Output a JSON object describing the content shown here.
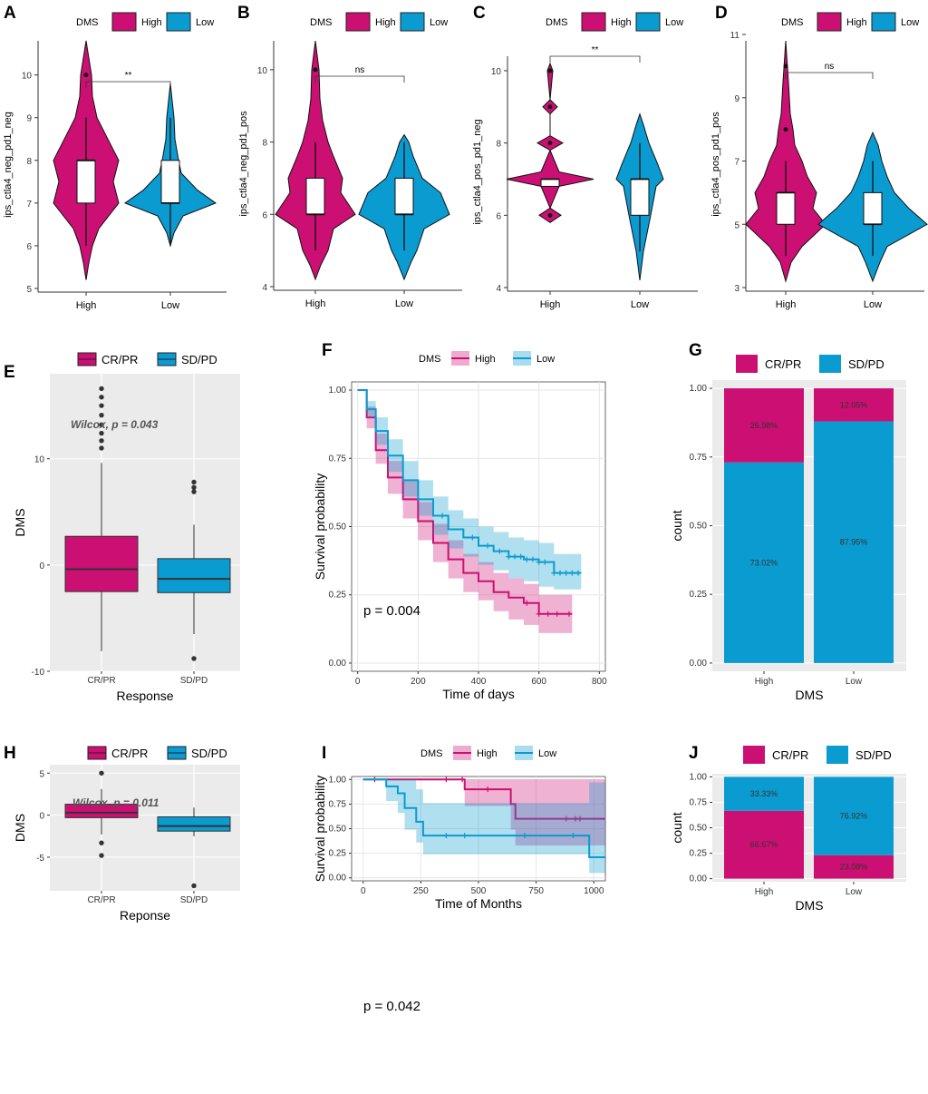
{
  "colors": {
    "high": "#cc0f73",
    "low": "#0a9bd0",
    "panel_bg": "#ebebeb",
    "grid": "#ffffff"
  },
  "chart_data": [
    {
      "panel": "A",
      "type": "violin",
      "legend_title": "DMS",
      "legend_labels": [
        "High",
        "Low"
      ],
      "ylabel": "ips_ctla4_neg_pd1_neg",
      "categories": [
        "High",
        "Low"
      ],
      "ylim": [
        5,
        10.8
      ],
      "yticks": [
        5,
        6,
        7,
        8,
        9,
        10
      ],
      "significance": "**",
      "series": [
        {
          "name": "High",
          "q1": 7,
          "median": 8,
          "q3": 8,
          "whisker_low": 6,
          "whisker_high": 9,
          "outliers": [
            10
          ]
        },
        {
          "name": "Low",
          "q1": 7,
          "median": 7,
          "q3": 8,
          "whisker_low": 6,
          "whisker_high": 9,
          "outliers": []
        }
      ]
    },
    {
      "panel": "B",
      "type": "violin",
      "legend_title": "DMS",
      "legend_labels": [
        "High",
        "Low"
      ],
      "ylabel": "ips_ctla4_neg_pd1_pos",
      "categories": [
        "High",
        "Low"
      ],
      "ylim": [
        4,
        10.8
      ],
      "yticks": [
        4,
        6,
        8,
        10
      ],
      "significance": "ns",
      "series": [
        {
          "name": "High",
          "q1": 6,
          "median": 6,
          "q3": 7,
          "whisker_low": 5,
          "whisker_high": 8,
          "outliers": [
            10
          ]
        },
        {
          "name": "Low",
          "q1": 6,
          "median": 6,
          "q3": 7,
          "whisker_low": 5,
          "whisker_high": 8,
          "outliers": []
        }
      ]
    },
    {
      "panel": "C",
      "type": "violin",
      "legend_title": "DMS",
      "legend_labels": [
        "High",
        "Low"
      ],
      "ylabel": "ips_ctla4_pos_pd1_neg",
      "categories": [
        "High",
        "Low"
      ],
      "ylim": [
        4,
        10.4
      ],
      "yticks": [
        4,
        6,
        8,
        10
      ],
      "significance": "**",
      "series": [
        {
          "name": "High",
          "q1": 6.8,
          "median": 7,
          "q3": 7,
          "whisker_low": 6.8,
          "whisker_high": 7,
          "outliers": [
            6,
            8,
            9,
            10
          ]
        },
        {
          "name": "Low",
          "q1": 6,
          "median": 7,
          "q3": 7,
          "whisker_low": 5,
          "whisker_high": 8,
          "outliers": []
        }
      ]
    },
    {
      "panel": "D",
      "type": "violin",
      "legend_title": "DMS",
      "legend_labels": [
        "High",
        "Low"
      ],
      "ylabel": "ips_ctla4_pos_pd1_pos",
      "categories": [
        "High",
        "Low"
      ],
      "ylim": [
        3,
        10.8
      ],
      "yticks": [
        3,
        5,
        7,
        9,
        11
      ],
      "significance": "ns",
      "series": [
        {
          "name": "High",
          "q1": 5,
          "median": 6,
          "q3": 6,
          "whisker_low": 4,
          "whisker_high": 7,
          "outliers": [
            8,
            10
          ]
        },
        {
          "name": "Low",
          "q1": 5,
          "median": 5,
          "q3": 6,
          "whisker_low": 4,
          "whisker_high": 7,
          "outliers": []
        }
      ]
    },
    {
      "panel": "E",
      "type": "box",
      "legend_labels": [
        "CR/PR",
        "SD/PD"
      ],
      "xlabel": "Response",
      "ylabel": "DMS",
      "categories": [
        "CR/PR",
        "SD/PD"
      ],
      "ylim": [
        -10,
        18
      ],
      "yticks": [
        -10,
        0,
        10
      ],
      "annotation": "Wilcox, p = 0.043",
      "series": [
        {
          "name": "CR/PR",
          "q1": -2.5,
          "median": -0.4,
          "q3": 2.7,
          "whisker_low": -8.1,
          "whisker_high": 9.6,
          "outliers": [
            11,
            11.7,
            12.4,
            13.2,
            14.1,
            15,
            15.8,
            16.6
          ]
        },
        {
          "name": "SD/PD",
          "q1": -2.6,
          "median": -1.3,
          "q3": 0.6,
          "whisker_low": -6.5,
          "whisker_high": 3.8,
          "outliers": [
            6.9,
            7.3,
            7.8,
            -8.8
          ]
        }
      ]
    },
    {
      "panel": "F",
      "type": "line",
      "legend_title": "DMS",
      "legend_labels": [
        "High",
        "Low"
      ],
      "xlabel": "Time of days",
      "ylabel": "Survival probability",
      "xlim": [
        -20,
        820
      ],
      "xticks": [
        0,
        200,
        400,
        600,
        800
      ],
      "ylim": [
        -0.03,
        1.03
      ],
      "yticks": [
        0.0,
        0.25,
        0.5,
        0.75,
        1.0
      ],
      "yticklabels": [
        "0.00",
        "0.25",
        "0.50",
        "0.75",
        "1.00"
      ],
      "pvalue": "p = 0.004",
      "series": [
        {
          "name": "High",
          "x": [
            0,
            30,
            60,
            100,
            150,
            200,
            250,
            300,
            350,
            400,
            450,
            500,
            550,
            600,
            650,
            710
          ],
          "y": [
            1.0,
            0.9,
            0.78,
            0.68,
            0.6,
            0.52,
            0.44,
            0.38,
            0.33,
            0.3,
            0.26,
            0.24,
            0.22,
            0.18,
            0.18,
            0.18
          ],
          "lower": [
            1.0,
            0.86,
            0.73,
            0.62,
            0.53,
            0.45,
            0.37,
            0.31,
            0.26,
            0.23,
            0.19,
            0.16,
            0.14,
            0.11,
            0.11,
            0.11
          ],
          "upper": [
            1.0,
            0.94,
            0.84,
            0.74,
            0.67,
            0.59,
            0.51,
            0.45,
            0.4,
            0.37,
            0.33,
            0.31,
            0.29,
            0.25,
            0.25,
            0.25
          ],
          "censor_x": [
            560,
            600,
            630,
            660,
            700
          ]
        },
        {
          "name": "Low",
          "x": [
            0,
            30,
            60,
            100,
            150,
            200,
            250,
            300,
            350,
            400,
            450,
            500,
            550,
            600,
            650,
            700,
            740
          ],
          "y": [
            1.0,
            0.93,
            0.85,
            0.76,
            0.67,
            0.6,
            0.54,
            0.49,
            0.46,
            0.43,
            0.41,
            0.39,
            0.38,
            0.37,
            0.33,
            0.33,
            0.33
          ],
          "lower": [
            1.0,
            0.9,
            0.8,
            0.7,
            0.61,
            0.54,
            0.47,
            0.42,
            0.39,
            0.36,
            0.34,
            0.31,
            0.3,
            0.28,
            0.27,
            0.27,
            0.27
          ],
          "upper": [
            1.0,
            0.96,
            0.9,
            0.82,
            0.74,
            0.67,
            0.61,
            0.56,
            0.53,
            0.5,
            0.48,
            0.46,
            0.45,
            0.44,
            0.4,
            0.4,
            0.4
          ],
          "censor_x": [
            280,
            380,
            430,
            470,
            500,
            520,
            540,
            560,
            580,
            600,
            620,
            650,
            670,
            690,
            710,
            730
          ]
        }
      ]
    },
    {
      "panel": "G",
      "type": "bar",
      "stacked": true,
      "legend_labels": [
        "CR/PR",
        "SD/PD"
      ],
      "xlabel": "DMS",
      "ylabel": "count",
      "categories": [
        "High",
        "Low"
      ],
      "ylim": [
        -0.03,
        1.03
      ],
      "yticks": [
        0,
        0.25,
        0.5,
        0.75,
        1.0
      ],
      "yticklabels": [
        "0.00",
        "0.25",
        "0.50",
        "0.75",
        "1.00"
      ],
      "series": [
        {
          "name": "SD/PD",
          "values": [
            0.7302,
            0.8795
          ],
          "labels": [
            "73.02%",
            "87.95%"
          ]
        },
        {
          "name": "CR/PR",
          "values": [
            0.2698,
            0.1205
          ],
          "labels": [
            "26.98%",
            "12.05%"
          ]
        }
      ]
    },
    {
      "panel": "H",
      "type": "box",
      "legend_labels": [
        "CR/PR",
        "SD/PD"
      ],
      "xlabel": "Reponse",
      "ylabel": "DMS",
      "categories": [
        "CR/PR",
        "SD/PD"
      ],
      "ylim": [
        -9,
        6
      ],
      "yticks": [
        -5,
        0,
        5
      ],
      "annotation": "Wilcox, p = 0.011",
      "series": [
        {
          "name": "CR/PR",
          "q1": -0.3,
          "median": 0.3,
          "q3": 1.3,
          "whisker_low": -2.3,
          "whisker_high": 3.1,
          "outliers": [
            5.0,
            -3.3,
            -4.8
          ]
        },
        {
          "name": "SD/PD",
          "q1": -1.9,
          "median": -1.3,
          "q3": -0.2,
          "whisker_low": -2.5,
          "whisker_high": 0.9,
          "outliers": [
            -8.4
          ]
        }
      ]
    },
    {
      "panel": "I",
      "type": "line",
      "legend_title": "DMS",
      "legend_labels": [
        "High",
        "Low"
      ],
      "xlabel": "Time of Months",
      "ylabel": "Survival probability",
      "xlim": [
        -50,
        1050
      ],
      "xticks": [
        0,
        250,
        500,
        750,
        1000
      ],
      "ylim": [
        -0.03,
        1.03
      ],
      "yticks": [
        0.0,
        0.25,
        0.5,
        0.75,
        1.0
      ],
      "yticklabels": [
        "0.00",
        "0.25",
        "0.50",
        "0.75",
        "1.00"
      ],
      "pvalue": "p = 0.042",
      "series": [
        {
          "name": "High",
          "x": [
            0,
            440,
            440,
            640,
            640,
            660,
            660,
            1050
          ],
          "y": [
            1.0,
            1.0,
            0.9,
            0.9,
            0.75,
            0.75,
            0.6,
            0.6
          ],
          "lower": [
            1.0,
            1.0,
            0.73,
            0.73,
            0.49,
            0.49,
            0.33,
            0.33
          ],
          "upper": [
            1.0,
            1.0,
            1.0,
            1.0,
            1.0,
            1.0,
            1.0,
            1.0
          ],
          "censor_x": [
            50,
            360,
            430,
            540,
            880,
            920,
            940
          ]
        },
        {
          "name": "Low",
          "x": [
            0,
            100,
            100,
            150,
            150,
            180,
            180,
            230,
            230,
            260,
            260,
            330,
            330,
            980,
            980,
            1050
          ],
          "y": [
            1.0,
            1.0,
            0.93,
            0.93,
            0.86,
            0.86,
            0.71,
            0.71,
            0.57,
            0.57,
            0.43,
            0.43,
            0.43,
            0.43,
            0.21,
            0.21
          ],
          "lower": [
            1.0,
            1.0,
            0.78,
            0.78,
            0.66,
            0.66,
            0.49,
            0.49,
            0.36,
            0.36,
            0.24,
            0.24,
            0.24,
            0.24,
            0.05,
            0.05
          ],
          "upper": [
            1.0,
            1.0,
            1.0,
            1.0,
            1.0,
            1.0,
            1.0,
            1.0,
            0.9,
            0.9,
            0.76,
            0.76,
            0.76,
            0.76,
            0.97,
            0.97
          ],
          "censor_x": [
            360,
            440,
            700,
            910
          ]
        }
      ]
    },
    {
      "panel": "J",
      "type": "bar",
      "stacked": true,
      "legend_labels": [
        "CR/PR",
        "SD/PD"
      ],
      "xlabel": "DMS",
      "ylabel": "count",
      "categories": [
        "High",
        "Low"
      ],
      "ylim": [
        -0.03,
        1.03
      ],
      "yticks": [
        0,
        0.25,
        0.5,
        0.75,
        1.0
      ],
      "yticklabels": [
        "0.00",
        "0.25",
        "0.50",
        "0.75",
        "1.00"
      ],
      "series": [
        {
          "name": "CR/PR",
          "values": [
            0.6667,
            0.2308
          ],
          "labels": [
            "66.67%",
            "23.08%"
          ]
        },
        {
          "name": "SD/PD",
          "values": [
            0.3333,
            0.7692
          ],
          "labels": [
            "33.33%",
            "76.92%"
          ]
        }
      ]
    }
  ]
}
